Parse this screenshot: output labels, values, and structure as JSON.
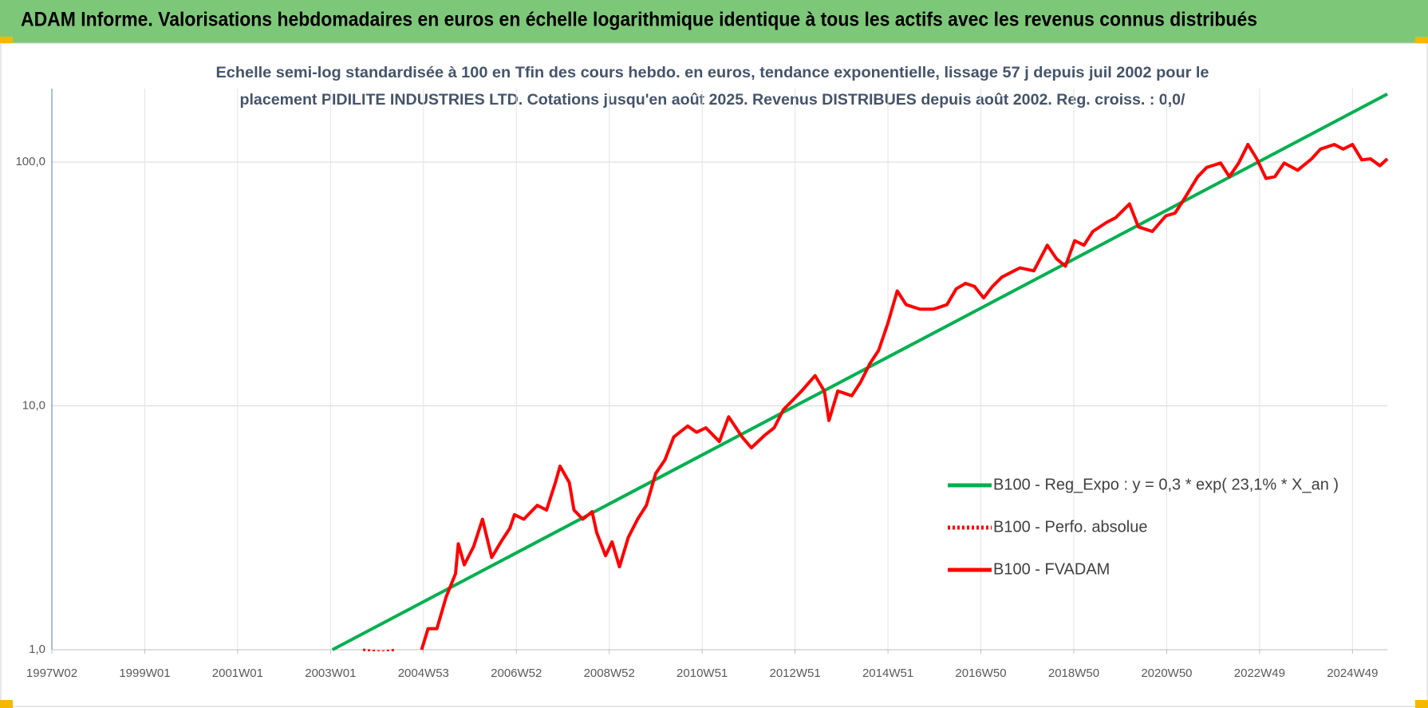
{
  "chart_data": {
    "type": "line",
    "title": "ADAM Informe. Valorisations hebdomadaires en euros en échelle logarithmique identique à tous les actifs avec les revenus connus distribués",
    "subtitle": [
      "Echelle semi-log standardisée à 100 en Tfin des cours hebdo. en euros, tendance exponentielle, lissage 57 j depuis juil 2002 pour le",
      "placement PIDILITE INDUSTRIES LTD. Cotations jusqu'en août 2025. Revenus DISTRIBUES depuis août 2002. Reg. croiss. : 0,0/"
    ],
    "log_scale": true,
    "grid": true,
    "legend": "lower right",
    "xlim": [
      1997.0,
      2025.75
    ],
    "xticks": [
      {
        "value": 1997,
        "label": "1997W02"
      },
      {
        "value": 1999,
        "label": "1999W01"
      },
      {
        "value": 2001,
        "label": "2001W01"
      },
      {
        "value": 2003,
        "label": "2003W01"
      },
      {
        "value": 2005,
        "label": "2004W53"
      },
      {
        "value": 2007,
        "label": "2006W52"
      },
      {
        "value": 2009,
        "label": "2008W52"
      },
      {
        "value": 2011,
        "label": "2010W51"
      },
      {
        "value": 2013,
        "label": "2012W51"
      },
      {
        "value": 2015,
        "label": "2014W51"
      },
      {
        "value": 2017,
        "label": "2016W50"
      },
      {
        "value": 2019,
        "label": "2018W50"
      },
      {
        "value": 2021,
        "label": "2020W50"
      },
      {
        "value": 2023,
        "label": "2022W49"
      },
      {
        "value": 2025,
        "label": "2024W49"
      }
    ],
    "ylim": [
      1,
      200
    ],
    "yticks": [
      {
        "value": 1,
        "label": "1,0"
      },
      {
        "value": 10,
        "label": "10,0"
      },
      {
        "value": 100,
        "label": "100,0"
      }
    ],
    "series": [
      {
        "name": "B100 - Reg_Expo : y = 0,3 * exp( 23,1% *  X_an )",
        "color": "#00b050",
        "style": "solid",
        "x": [
          2003.04,
          2025.75
        ],
        "values": [
          1.0,
          190
        ]
      },
      {
        "name": "B100 - Perfo. absolue",
        "color": "#ff0000",
        "style": "dotted",
        "x": [
          2003.7,
          2004.1,
          2004.4
        ],
        "values": [
          1.0,
          0.98,
          1.0
        ]
      },
      {
        "name": "B100 - FVADAM",
        "color": "#ff0000",
        "style": "solid",
        "x": [
          2004.96,
          2005.1,
          2005.29,
          2005.49,
          2005.69,
          2005.75,
          2005.88,
          2006.08,
          2006.27,
          2006.47,
          2006.67,
          2006.86,
          2006.96,
          2007.16,
          2007.45,
          2007.65,
          2007.84,
          2007.94,
          2008.14,
          2008.24,
          2008.43,
          2008.63,
          2008.73,
          2008.92,
          2009.06,
          2009.22,
          2009.41,
          2009.61,
          2009.8,
          2010.0,
          2010.2,
          2010.39,
          2010.69,
          2010.88,
          2011.08,
          2011.37,
          2011.57,
          2011.86,
          2012.06,
          2012.35,
          2012.55,
          2012.75,
          2012.94,
          2013.14,
          2013.43,
          2013.63,
          2013.73,
          2013.92,
          2014.22,
          2014.41,
          2014.61,
          2014.8,
          2015.0,
          2015.2,
          2015.39,
          2015.69,
          2015.98,
          2016.27,
          2016.47,
          2016.67,
          2016.86,
          2017.06,
          2017.25,
          2017.45,
          2017.84,
          2018.14,
          2018.43,
          2018.63,
          2018.82,
          2019.02,
          2019.22,
          2019.41,
          2019.71,
          2019.9,
          2020.2,
          2020.39,
          2020.69,
          2020.98,
          2021.18,
          2021.37,
          2021.67,
          2021.86,
          2022.16,
          2022.35,
          2022.55,
          2022.75,
          2022.94,
          2023.14,
          2023.33,
          2023.53,
          2023.82,
          2024.12,
          2024.31,
          2024.61,
          2024.8,
          2025.0,
          2025.2,
          2025.39,
          2025.59,
          2025.75
        ],
        "values": [
          1.0,
          1.22,
          1.22,
          1.65,
          2.05,
          2.72,
          2.23,
          2.65,
          3.43,
          2.39,
          2.77,
          3.15,
          3.58,
          3.43,
          3.91,
          3.74,
          4.85,
          5.66,
          4.85,
          3.74,
          3.43,
          3.68,
          3.02,
          2.43,
          2.77,
          2.19,
          2.89,
          3.43,
          3.91,
          5.28,
          6.01,
          7.46,
          8.27,
          7.79,
          8.13,
          7.14,
          9.02,
          7.46,
          6.73,
          7.59,
          8.13,
          9.66,
          10.5,
          11.5,
          13.3,
          11.5,
          8.71,
          11.5,
          11.0,
          12.5,
          14.9,
          16.9,
          21.9,
          29.6,
          26.0,
          24.9,
          24.9,
          26.0,
          30.2,
          31.8,
          30.9,
          27.7,
          30.9,
          33.7,
          36.8,
          35.8,
          45.6,
          40.1,
          37.4,
          47.6,
          45.6,
          51.9,
          56.6,
          59.1,
          67.3,
          54.2,
          51.9,
          60.1,
          61.7,
          70.2,
          87.1,
          95.0,
          99.1,
          87.1,
          99.1,
          118,
          103,
          85.6,
          87.1,
          99.1,
          92.5,
          103,
          113,
          118,
          113,
          118,
          102,
          103,
          96.6,
          103
        ]
      }
    ]
  }
}
